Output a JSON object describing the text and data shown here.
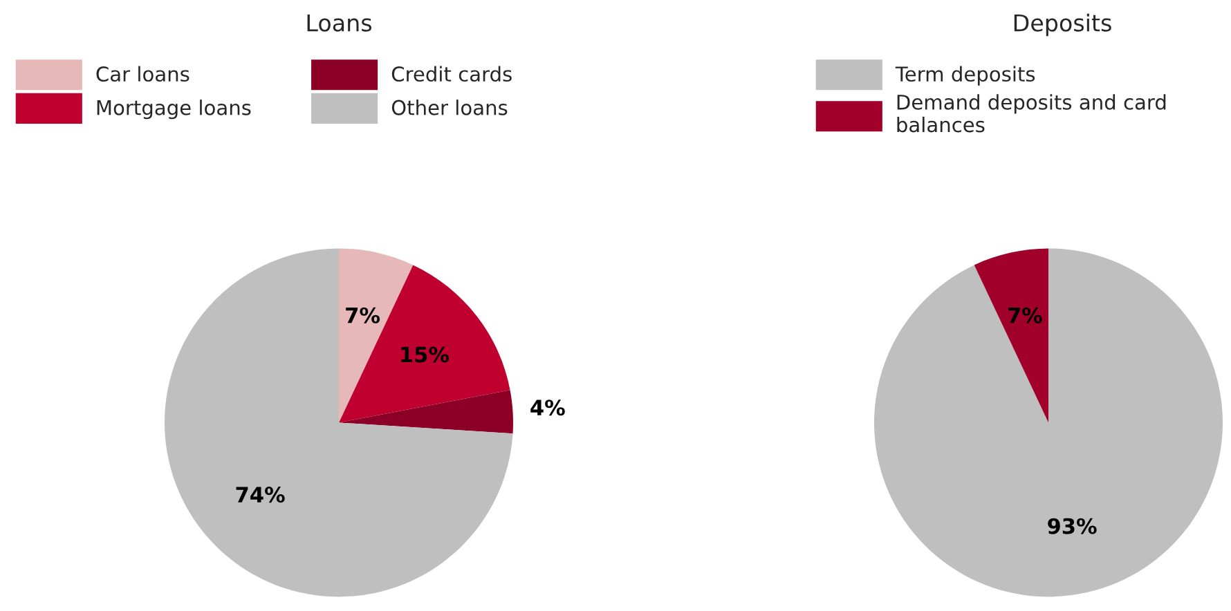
{
  "chart_data": [
    {
      "type": "pie",
      "title": "Loans",
      "categories": [
        "Car loans",
        "Mortgage loans",
        "Credit cards",
        "Other loans"
      ],
      "values": [
        7,
        15,
        4,
        74
      ],
      "value_labels": [
        "7%",
        "15%",
        "4%",
        "74%"
      ],
      "colors": [
        "#e6b9b8",
        "#c0002f",
        "#8c0027",
        "#bfbfbf"
      ],
      "legend": "top"
    },
    {
      "type": "pie",
      "title": "Deposits",
      "categories": [
        "Term deposits",
        "Demand deposits and card balances"
      ],
      "values": [
        93,
        7
      ],
      "value_labels": [
        "93%",
        "7%"
      ],
      "colors": [
        "#bfbfbf",
        "#a00029"
      ],
      "legend": "top"
    }
  ]
}
